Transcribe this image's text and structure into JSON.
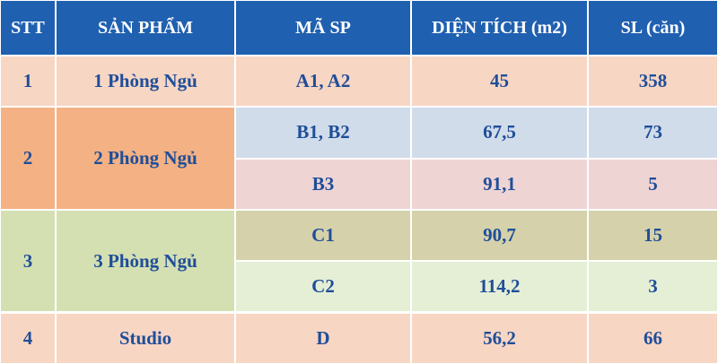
{
  "table": {
    "header": [
      "STT",
      "SẢN PHẨM",
      "MÃ SP",
      "DIỆN TÍCH (m2)",
      "SL (căn)"
    ],
    "rows": [
      {
        "stt": "1",
        "product": "1 Phòng Ngủ",
        "items": [
          {
            "code": "A1, A2",
            "area": "45",
            "count": "358"
          }
        ]
      },
      {
        "stt": "2",
        "product": "2 Phòng Ngủ",
        "items": [
          {
            "code": "B1, B2",
            "area": "67,5",
            "count": "73"
          },
          {
            "code": "B3",
            "area": "91,1",
            "count": "5"
          }
        ]
      },
      {
        "stt": "3",
        "product": "3 Phòng Ngủ",
        "items": [
          {
            "code": "C1",
            "area": "90,7",
            "count": "15"
          },
          {
            "code": "C2",
            "area": "114,2",
            "count": "3"
          }
        ]
      },
      {
        "stt": "4",
        "product": "Studio",
        "items": [
          {
            "code": "D",
            "area": "56,2",
            "count": "66"
          }
        ]
      }
    ]
  }
}
